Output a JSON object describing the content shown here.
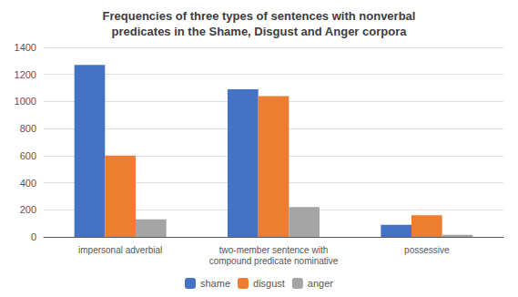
{
  "chart_data": {
    "type": "bar",
    "title": "Frequencies of three types of sentences with nonverbal\npredicates in the Shame, Disgust and Anger corpora",
    "categories": [
      "impersonal adverbial",
      "two-member sentence with\ncompound predicate nominative",
      "possessive"
    ],
    "series": [
      {
        "name": "shame",
        "color": "#4472C4",
        "values": [
          1270,
          1090,
          90
        ]
      },
      {
        "name": "disgust",
        "color": "#ED7D31",
        "values": [
          600,
          1040,
          160
        ]
      },
      {
        "name": "anger",
        "color": "#A5A5A5",
        "values": [
          130,
          220,
          15
        ]
      }
    ],
    "ylim": [
      0,
      1400
    ],
    "yticks": [
      0,
      200,
      400,
      600,
      800,
      1000,
      1200,
      1400
    ],
    "grid": true,
    "legend": "bottom"
  }
}
